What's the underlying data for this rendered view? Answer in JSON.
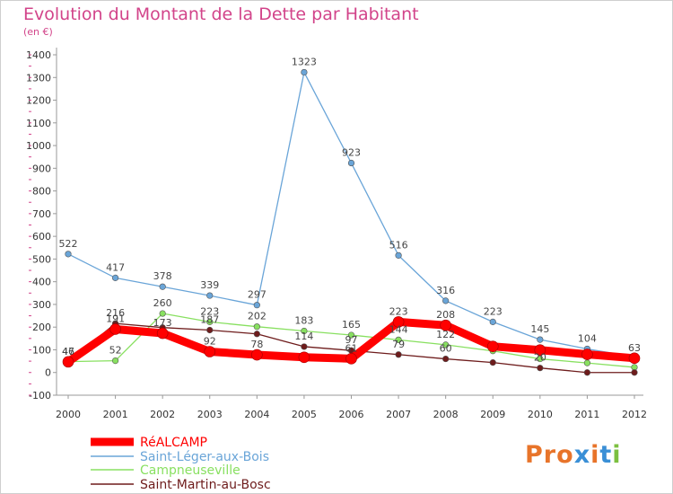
{
  "chart_data": {
    "type": "line",
    "title": "Evolution du Montant de la Dette par Habitant",
    "unit_label": "(en €)",
    "x": [
      "2000",
      "2001",
      "2002",
      "2003",
      "2004",
      "2005",
      "2006",
      "2007",
      "2008",
      "2009",
      "2010",
      "2011",
      "2012"
    ],
    "ylim": [
      -100,
      1400
    ],
    "yticks": [
      -100,
      0,
      100,
      200,
      300,
      400,
      500,
      600,
      700,
      800,
      900,
      1000,
      1100,
      1200,
      1300,
      1400
    ],
    "grid": false,
    "legend_position": "bottom-left",
    "series": [
      {
        "name": "RéALCAMP",
        "color": "#ff0000",
        "values": [
          47,
          191,
          173,
          92,
          78,
          67,
          61,
          223,
          208,
          115,
          99,
          80,
          63
        ],
        "labels": [
          "47",
          "191",
          "173",
          "92",
          "78",
          "",
          "61",
          "223",
          "208",
          "",
          "",
          "",
          "63"
        ]
      },
      {
        "name": "Saint-Léger-aux-Bois",
        "color": "#6aa5d8",
        "values": [
          522,
          417,
          378,
          339,
          297,
          1323,
          923,
          516,
          316,
          223,
          145,
          104,
          69
        ],
        "labels": [
          "522",
          "417",
          "378",
          "339",
          "297",
          "1323",
          "923",
          "516",
          "316",
          "223",
          "145",
          "104",
          ""
        ]
      },
      {
        "name": "Campneuseville",
        "color": "#88e060",
        "values": [
          48,
          52,
          260,
          223,
          202,
          183,
          165,
          144,
          122,
          95,
          60,
          42,
          23
        ],
        "labels": [
          "",
          "52",
          "260",
          "223",
          "202",
          "183",
          "165",
          "144",
          "122",
          "",
          "",
          "",
          ""
        ]
      },
      {
        "name": "Saint-Martin-au-Bosc",
        "color": "#6e1c1c",
        "values": [
          46,
          216,
          198,
          187,
          170,
          114,
          97,
          79,
          60,
          44,
          20,
          0,
          0
        ],
        "labels": [
          "46",
          "216",
          "",
          "187",
          "",
          "114",
          "97",
          "79",
          "60",
          "",
          "20",
          "",
          ""
        ]
      }
    ]
  },
  "logo": {
    "letters": [
      "P",
      "r",
      "o",
      "x",
      "i",
      "t",
      "i"
    ],
    "colors": [
      "#e8742a",
      "#e8742a",
      "#e8742a",
      "#3a8fd6",
      "#e8742a",
      "#3a8fd6",
      "#7cc040"
    ]
  }
}
